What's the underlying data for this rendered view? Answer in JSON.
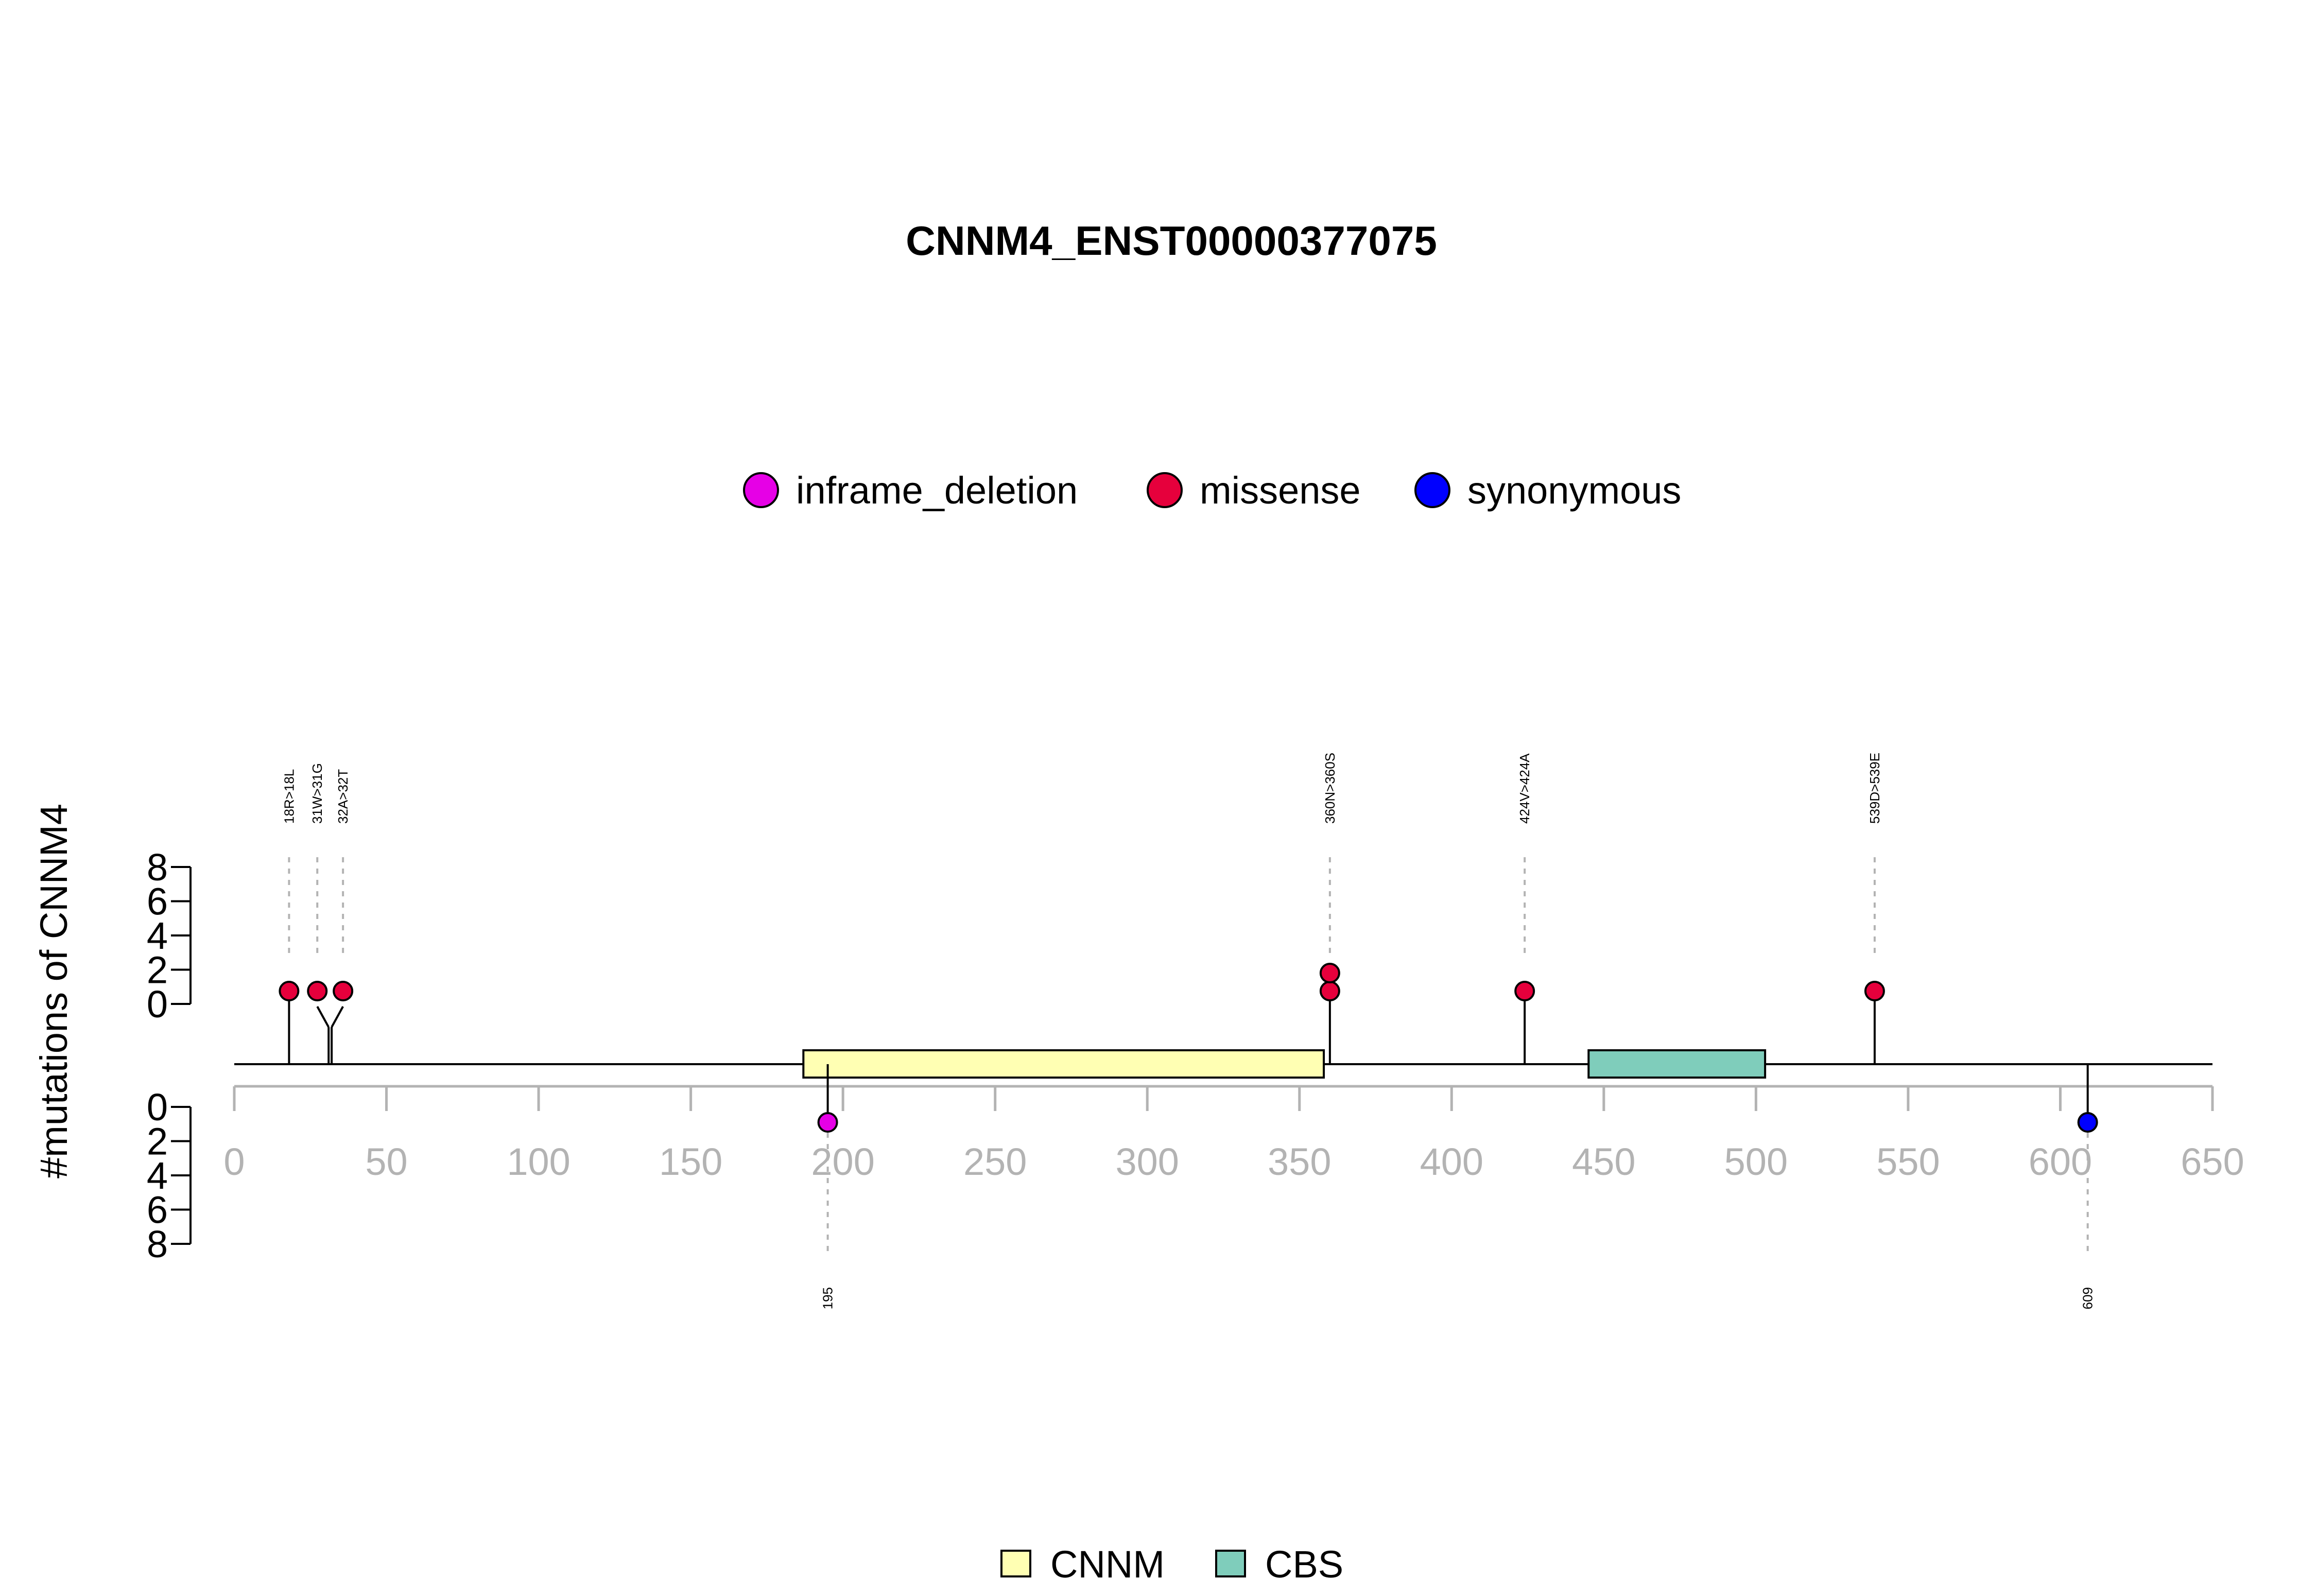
{
  "chart_data": {
    "type": "lollipop",
    "title": "CNNM4_ENST00000377075",
    "ylabel": "#mutations of CNNM4",
    "xlim": [
      0,
      650
    ],
    "xticks": [
      "0",
      "50",
      "100",
      "150",
      "200",
      "250",
      "300",
      "350",
      "400",
      "450",
      "500",
      "550",
      "600",
      "650"
    ],
    "yticks_top": [
      "0",
      "2",
      "4",
      "6",
      "8"
    ],
    "yticks_bottom": [
      "0",
      "2",
      "4",
      "6",
      "8"
    ],
    "ylim": [
      0,
      8
    ],
    "mutation_legend": [
      {
        "label": "inframe_deletion",
        "color": "#e600e6"
      },
      {
        "label": "missense",
        "color": "#e6003c"
      },
      {
        "label": "synonymous",
        "color": "#0000ff"
      }
    ],
    "domain_legend": [
      {
        "label": "CNNM",
        "color": "#ffffb3"
      },
      {
        "label": "CBS",
        "color": "#7fcdbb"
      }
    ],
    "domains": [
      {
        "name": "CNNM",
        "start": 187,
        "end": 358,
        "color": "#ffffb3"
      },
      {
        "name": "CBS",
        "start": 445,
        "end": 503,
        "color": "#7fcdbb"
      }
    ],
    "mutations_top": [
      {
        "label": "18R>18L",
        "position": 18,
        "count": 1,
        "type": "missense"
      },
      {
        "label": "31W>31G",
        "position": 31,
        "count": 1,
        "type": "missense"
      },
      {
        "label": "32A>32T",
        "position": 32,
        "count": 1,
        "type": "missense"
      },
      {
        "label": "360N>360S",
        "position": 360,
        "count": 2,
        "type": "missense"
      },
      {
        "label": "424V>424A",
        "position": 424,
        "count": 1,
        "type": "missense"
      },
      {
        "label": "539D>539E",
        "position": 539,
        "count": 1,
        "type": "missense"
      }
    ],
    "mutations_bottom": [
      {
        "label": "195",
        "position": 195,
        "count": 1,
        "type": "inframe_deletion"
      },
      {
        "label": "609",
        "position": 609,
        "count": 1,
        "type": "synonymous"
      }
    ]
  }
}
